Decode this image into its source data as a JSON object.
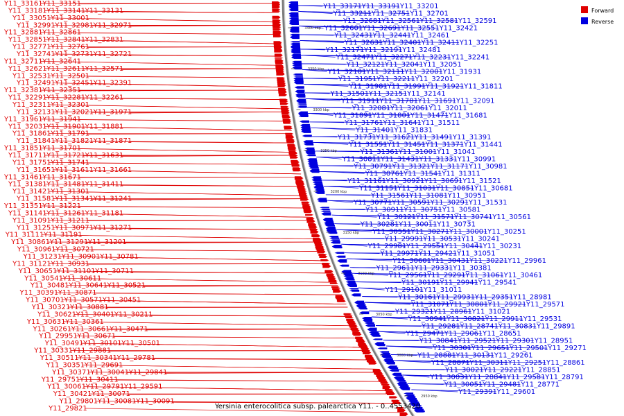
{
  "title": "Yersinia enterocolitica subsp. palearctica Y11. - 0..4553420",
  "legend": [
    {
      "label": "Forward",
      "color": "#e00000"
    },
    {
      "label": "Reverse",
      "color": "#0000e0"
    }
  ],
  "ticks": [
    "3400 kbp",
    "3350 kbp",
    "3300 kbp",
    "3250 kbp",
    "3200 kbp",
    "3150 kbp",
    "3100 kbp",
    "3050 kbp",
    "3000 kbp",
    "2950 kbp"
  ],
  "forward_labels": [
    "Y11_33161",
    "Y11_33151",
    "Y11_33181",
    "Y11_33141",
    "Y11_33131",
    "Y11_33051",
    "Y11_33001",
    "Y11_32991",
    "Y11_32981",
    "Y11_32971",
    "Y11_32881",
    "Y11_32861",
    "Y11_32851",
    "Y11_32841",
    "Y11_32831",
    "Y11_32771",
    "Y11_32761",
    "Y11_32741",
    "Y11_32731",
    "Y11_32721",
    "Y11_32711",
    "Y11_32641",
    "Y11_32621",
    "Y11_32611",
    "Y11_32571",
    "Y11_32531",
    "Y11_32501",
    "Y11_32491",
    "Y11_32451",
    "Y11_32391",
    "Y11_32381",
    "Y11_32351",
    "Y11_32291",
    "Y11_32281",
    "Y11_32261",
    "Y11_32311",
    "Y11_32301",
    "Y11_32131",
    "Y11_32021",
    "Y11_31971",
    "Y11_31961",
    "Y11_31941",
    "Y11_32031",
    "Y11_31901",
    "Y11_31881",
    "Y11_31861",
    "Y11_31791",
    "Y11_31841",
    "Y11_31821",
    "Y11_31871",
    "Y11_31851",
    "Y11_31701",
    "Y11_31711",
    "Y11_31721",
    "Y11_31631",
    "Y11_31751",
    "Y11_31741",
    "Y11_31651",
    "Y11_31611",
    "Y11_31661",
    "Y11_31461",
    "Y11_31671",
    "Y11_31381",
    "Y11_31481",
    "Y11_31411",
    "Y11_31421",
    "Y11_31301",
    "Y11_31581",
    "Y11_31341",
    "Y11_31241",
    "Y11_31351",
    "Y11_31221",
    "Y11_31141",
    "Y11_31261",
    "Y11_31181",
    "Y11_31091",
    "Y11_31211",
    "Y11_31251",
    "Y11_30971",
    "Y11_31271",
    "Y11_31111",
    "Y11_31191",
    "Y11_30861",
    "Y11_31291",
    "Y11_31201",
    "Y11_30961",
    "Y11_30721",
    "Y11_31231",
    "Y11_30901",
    "Y11_30781",
    "Y11_31121",
    "Y11_30931",
    "Y11_30651",
    "Y11_31101",
    "Y11_30711",
    "Y11_30541",
    "Y11_30611",
    "Y11_30481",
    "Y11_30641",
    "Y11_30521",
    "Y11_30391",
    "Y11_30871",
    "Y11_30701",
    "Y11_30571",
    "Y11_30451",
    "Y11_30321",
    "Y11_30881",
    "Y11_30621",
    "Y11_30401",
    "Y11_30211",
    "Y11_30631",
    "Y11_30361",
    "Y11_30261",
    "Y11_30661",
    "Y11_30471",
    "Y11_29951",
    "Y11_30671",
    "Y11_30491",
    "Y11_30101",
    "Y11_30501",
    "Y11_30331",
    "Y11_29881",
    "Y11_30511",
    "Y11_30341",
    "Y11_29781",
    "Y11_30351",
    "Y11_29691",
    "Y11_30371",
    "Y11_30041",
    "Y11_29841",
    "Y11_29751",
    "Y11_30411",
    "Y11_30061",
    "Y11_29791",
    "Y11_29591",
    "Y11_30421",
    "Y11_30071",
    "Y11_29801",
    "Y11_30081",
    "Y11_30091",
    "Y11_29821"
  ],
  "reverse_labels": [
    "Y11_33171",
    "Y11_33191",
    "Y11_33201",
    "Y11_33211",
    "Y11_32751",
    "Y11_32701",
    "Y11_32681",
    "Y11_32561",
    "Y11_32581",
    "Y11_32591",
    "Y11_32601",
    "Y11_32691",
    "Y11_32551",
    "Y11_32421",
    "Y11_32431",
    "Y11_32441",
    "Y11_32461",
    "Y11_32631",
    "Y11_32401",
    "Y11_32411",
    "Y11_32251",
    "Y11_32171",
    "Y11_32191",
    "Y11_32481",
    "Y11_32471",
    "Y11_32271",
    "Y11_32231",
    "Y11_32241",
    "Y11_32121",
    "Y11_32041",
    "Y11_32051",
    "Y11_32101",
    "Y11_32111",
    "Y11_32001",
    "Y11_31931",
    "Y11_31951",
    "Y11_32211",
    "Y11_32201",
    "Y11_31981",
    "Y11_31991",
    "Y11_31921",
    "Y11_31811",
    "Y11_31501",
    "Y11_32151",
    "Y11_32141",
    "Y11_31911",
    "Y11_31781",
    "Y11_31691",
    "Y11_32091",
    "Y11_32081",
    "Y11_32061",
    "Y11_32011",
    "Y11_31891",
    "Y11_31801",
    "Y11_31471",
    "Y11_31681",
    "Y11_31761",
    "Y11_31641",
    "Y11_31511",
    "Y11_31401",
    "Y11_31831",
    "Y11_31731",
    "Y11_31621",
    "Y11_31491",
    "Y11_31391",
    "Y11_31551",
    "Y11_31451",
    "Y11_31371",
    "Y11_31441",
    "Y11_31361",
    "Y11_31001",
    "Y11_31041",
    "Y11_30811",
    "Y11_31431",
    "Y11_31331",
    "Y11_30991",
    "Y11_30791",
    "Y11_31321",
    "Y11_31171",
    "Y11_30981",
    "Y11_30761",
    "Y11_31541",
    "Y11_31311",
    "Y11_31161",
    "Y11_30921",
    "Y11_30691",
    "Y11_31521",
    "Y11_31151",
    "Y11_31031",
    "Y11_30851",
    "Y11_30681",
    "Y11_31561",
    "Y11_31081",
    "Y11_30951",
    "Y11_30771",
    "Y11_30591",
    "Y11_30291",
    "Y11_31531",
    "Y11_30911",
    "Y11_30751",
    "Y11_30581",
    "Y11_30121",
    "Y11_31571",
    "Y11_30741",
    "Y11_30561",
    "Y11_30281",
    "Y11_30011",
    "Y11_30731",
    "Y11_30551",
    "Y11_30271",
    "Y11_30001",
    "Y11_30251",
    "Y11_29991",
    "Y11_30531",
    "Y11_30241",
    "Y11_29981",
    "Y11_29551",
    "Y11_30441",
    "Y11_30231",
    "Y11_29971",
    "Y11_29421",
    "Y11_31051",
    "Y11_30601",
    "Y11_30431",
    "Y11_30221",
    "Y11_29961",
    "Y11_29611",
    "Y11_29331",
    "Y11_30381",
    "Y11_29561",
    "Y11_29291",
    "Y11_31061",
    "Y11_30461",
    "Y11_30191",
    "Y11_29941",
    "Y11_29541",
    "Y11_29101",
    "Y11_31011",
    "Y11_30161",
    "Y11_29931",
    "Y11_29351",
    "Y11_28981",
    "Y11_31071",
    "Y11_30801",
    "Y11_29921",
    "Y11_29571",
    "Y11_29321",
    "Y11_28961",
    "Y11_31021",
    "Y11_30941",
    "Y11_30821",
    "Y11_29911",
    "Y11_29531",
    "Y11_29281",
    "Y11_28741",
    "Y11_30831",
    "Y11_29891",
    "Y11_29471",
    "Y11_29061",
    "Y11_28651",
    "Y11_30841",
    "Y11_29521",
    "Y11_29301",
    "Y11_28951",
    "Y11_30301",
    "Y11_29651",
    "Y11_29501",
    "Y11_29271",
    "Y11_28881",
    "Y11_30131",
    "Y11_29261",
    "Y11_28871",
    "Y11_30311",
    "Y11_29251",
    "Y11_28861",
    "Y11_30021",
    "Y11_29221",
    "Y11_28851",
    "Y11_30031",
    "Y11_28841",
    "Y11_29581",
    "Y11_28791",
    "Y11_30051",
    "Y11_29481",
    "Y11_28771",
    "Y11_29391",
    "Y11_29601"
  ]
}
